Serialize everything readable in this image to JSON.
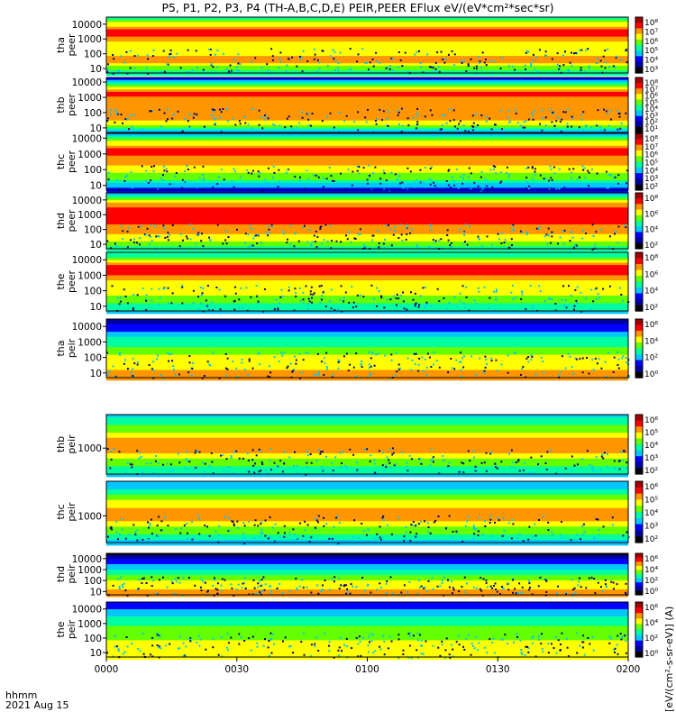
{
  "title": "P5, P1, P2, P3, P4 (TH-A,B,C,D,E) PEIR,PEER EFlux eV/(eV*cm²*sec*sr)",
  "colorbar_label": "[eV/(cm²-s-sr-eV)] (A)",
  "bottom_labels": {
    "unit": "hhmm",
    "date": "2021 Aug 15"
  },
  "chart_data": [
    {
      "type": "heatmap",
      "probe": "tha",
      "species": "peer",
      "ylabel": [
        "tha",
        "peer"
      ],
      "yscale": "log",
      "ylim": [
        5,
        30000
      ],
      "yticks": [
        10,
        100,
        1000,
        10000
      ],
      "ytick_labels": [
        "10",
        "100",
        "1000",
        "10000"
      ],
      "cb_ticks": [
        "10⁸",
        "10⁷",
        "10⁶",
        "10⁵",
        "10⁴",
        "10³"
      ],
      "profile": [
        0.45,
        0.95,
        0.6,
        0.8,
        0.4
      ]
    },
    {
      "type": "heatmap",
      "probe": "thb",
      "species": "peer",
      "ylabel": [
        "thb",
        "peer"
      ],
      "yscale": "log",
      "ylim": [
        5,
        20000
      ],
      "yticks": [
        10,
        100,
        1000,
        10000
      ],
      "ytick_labels": [
        "10",
        "100",
        "1000",
        "10000"
      ],
      "cb_ticks": [
        "10⁸",
        "10⁷",
        "10⁶",
        "10⁵",
        "10⁴",
        "10³",
        "10²",
        "10¹"
      ],
      "profile": [
        0.25,
        0.85,
        0.8,
        0.75,
        0.3
      ]
    },
    {
      "type": "heatmap",
      "probe": "thc",
      "species": "peer",
      "ylabel": [
        "thc",
        "peer"
      ],
      "yscale": "log",
      "ylim": [
        5,
        20000
      ],
      "yticks": [
        10,
        100,
        1000,
        10000
      ],
      "ytick_labels": [
        "10",
        "100",
        "1000",
        "10000"
      ],
      "cb_ticks": [
        "10⁸",
        "10⁷",
        "10⁶",
        "10⁵",
        "10⁴",
        "10³",
        "10²"
      ],
      "profile": [
        0.3,
        0.9,
        0.75,
        0.55,
        0.2
      ]
    },
    {
      "type": "heatmap",
      "probe": "thd",
      "species": "peer",
      "ylabel": [
        "thd",
        "peer"
      ],
      "yscale": "log",
      "ylim": [
        5,
        30000
      ],
      "yticks": [
        10,
        100,
        1000,
        10000
      ],
      "ytick_labels": [
        "10",
        "100",
        "1000",
        "10000"
      ],
      "cb_ticks": [
        "10⁸",
        "10⁶",
        "10⁴",
        "10²"
      ],
      "profile": [
        0.35,
        0.9,
        0.85,
        0.7,
        0.45
      ]
    },
    {
      "type": "heatmap",
      "probe": "the",
      "species": "peer",
      "ylabel": [
        "the",
        "peer"
      ],
      "yscale": "log",
      "ylim": [
        5,
        30000
      ],
      "yticks": [
        10,
        100,
        1000,
        10000
      ],
      "ytick_labels": [
        "10",
        "100",
        "1000",
        "10000"
      ],
      "cb_ticks": [
        "10⁸",
        "10⁶",
        "10⁴",
        "10²"
      ],
      "profile": [
        0.4,
        0.95,
        0.7,
        0.6,
        0.35
      ]
    },
    {
      "type": "heatmap",
      "probe": "tha",
      "species": "peir",
      "ylabel": [
        "tha",
        "peir"
      ],
      "yscale": "log",
      "ylim": [
        5,
        30000
      ],
      "yticks": [
        10,
        100,
        1000,
        10000
      ],
      "ytick_labels": [
        "10",
        "100",
        "1000",
        "10000"
      ],
      "cb_ticks": [
        "10⁶",
        "10⁴",
        "10²",
        "10⁰"
      ],
      "profile": [
        0.1,
        0.35,
        0.55,
        0.7,
        0.75
      ]
    },
    {
      "type": "heatmap",
      "probe": "thb",
      "species": "peir",
      "ylabel": [
        "thb",
        "peir"
      ],
      "yscale": "log",
      "ylim": [
        200,
        8000
      ],
      "yticks": [
        1000
      ],
      "ytick_labels": [
        "1000"
      ],
      "cb_ticks": [
        "10⁶",
        "10⁵",
        "10⁴",
        "10³",
        "10²"
      ],
      "profile": [
        0.35,
        0.6,
        0.85,
        0.6,
        0.35
      ]
    },
    {
      "type": "heatmap",
      "probe": "thc",
      "species": "peir",
      "ylabel": [
        "thc",
        "peir"
      ],
      "yscale": "log",
      "ylim": [
        200,
        8000
      ],
      "yticks": [
        1000
      ],
      "ytick_labels": [
        "1000"
      ],
      "cb_ticks": [
        "10⁶",
        "10⁵",
        "10⁴",
        "10³",
        "10²"
      ],
      "profile": [
        0.3,
        0.55,
        0.85,
        0.6,
        0.3
      ]
    },
    {
      "type": "heatmap",
      "probe": "thd",
      "species": "peir",
      "ylabel": [
        "thd",
        "peir"
      ],
      "yscale": "log",
      "ylim": [
        5,
        30000
      ],
      "yticks": [
        10,
        100,
        1000,
        10000
      ],
      "ytick_labels": [
        "10",
        "100",
        "1000",
        "10000"
      ],
      "cb_ticks": [
        "10⁶",
        "10⁴",
        "10²",
        "10⁰"
      ],
      "profile": [
        0.05,
        0.3,
        0.5,
        0.7,
        0.75
      ]
    },
    {
      "type": "heatmap",
      "probe": "the",
      "species": "peir",
      "ylabel": [
        "the",
        "peir"
      ],
      "yscale": "log",
      "ylim": [
        5,
        30000
      ],
      "yticks": [
        10,
        100,
        1000,
        10000
      ],
      "ytick_labels": [
        "10",
        "100",
        "1000",
        "10000"
      ],
      "cb_ticks": [
        "10⁶",
        "10⁴",
        "10²",
        "10⁰"
      ],
      "profile": [
        0.2,
        0.4,
        0.55,
        0.65,
        0.7
      ]
    }
  ],
  "x_axis": {
    "ticks": [
      "0000",
      "0030",
      "0100",
      "0130",
      "0200"
    ],
    "range": [
      "00:00",
      "02:00"
    ]
  },
  "colors": {
    "colormap": [
      "#000000",
      "#0000a0",
      "#0000ff",
      "#00c8ff",
      "#00ffa0",
      "#64ff00",
      "#ffff00",
      "#ff9600",
      "#ff0000",
      "#a00000"
    ]
  }
}
